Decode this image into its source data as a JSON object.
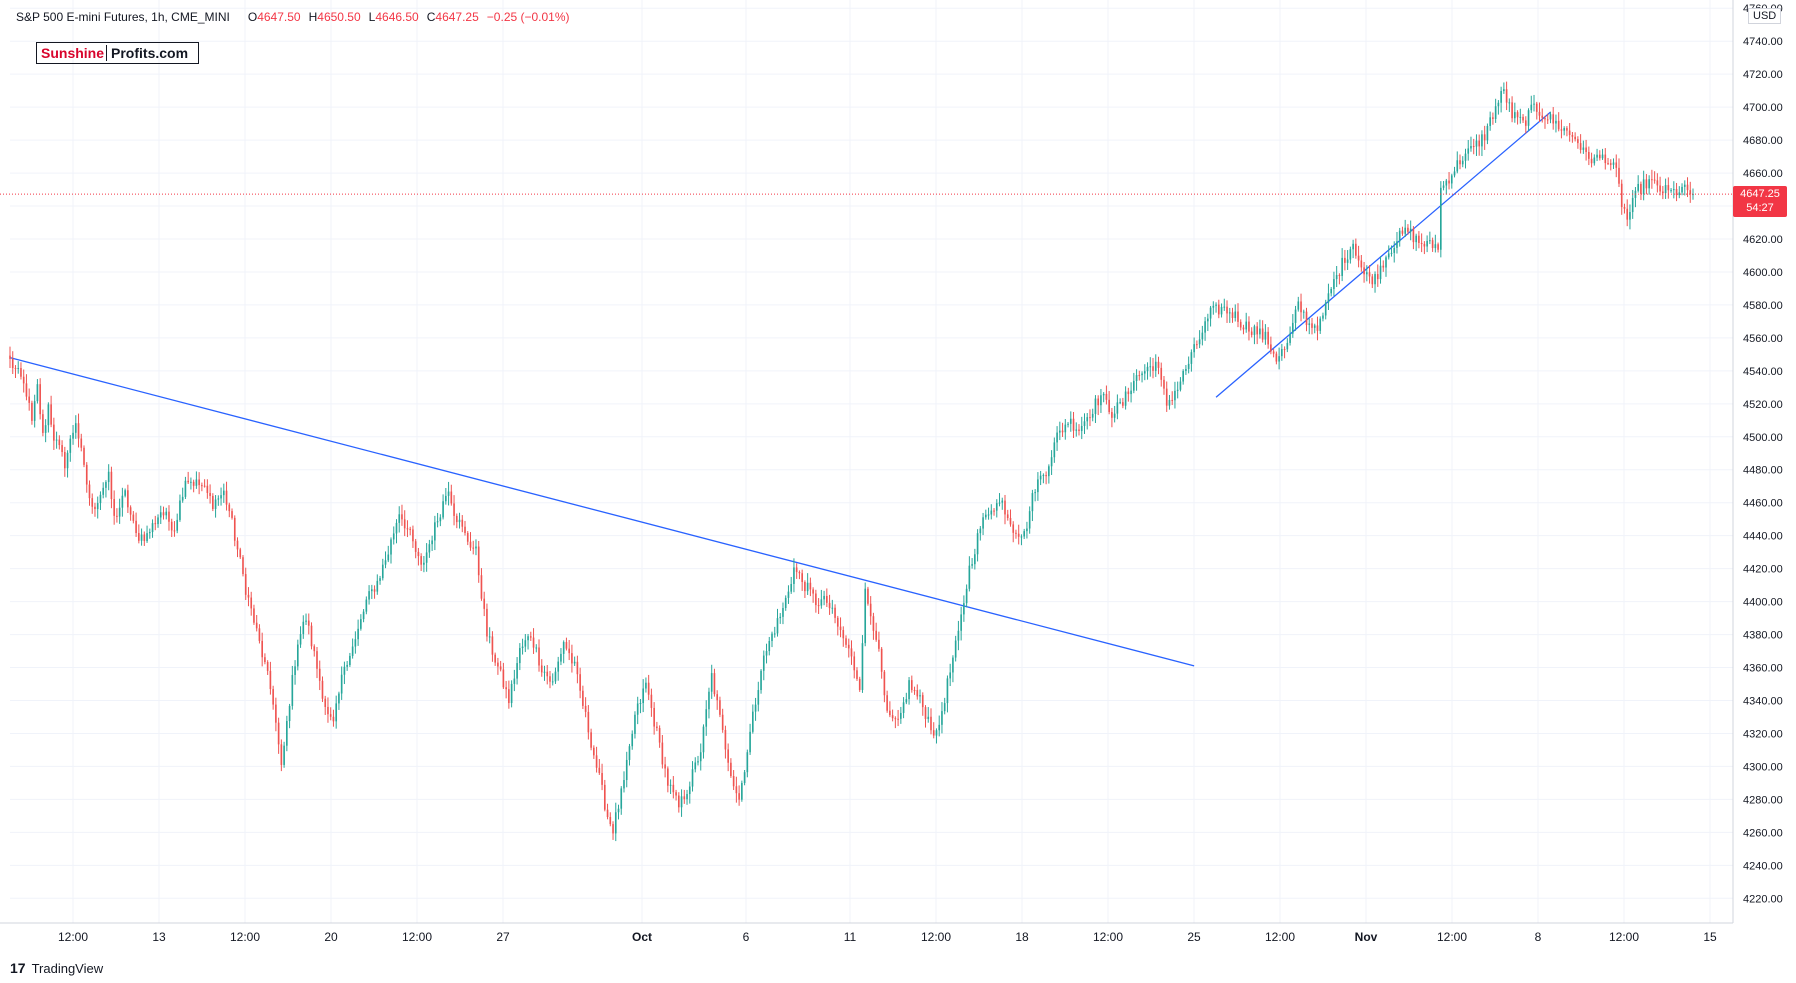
{
  "header": {
    "symbol": "S&P 500 E-mini Futures, 1h, CME_MINI",
    "open_label": "O",
    "open": "4647.50",
    "high_label": "H",
    "high": "4650.50",
    "low_label": "L",
    "low": "4646.50",
    "close_label": "C",
    "close": "4647.25",
    "change": "−0.25 (−0.01%)"
  },
  "watermark": {
    "part1": "Sunshine",
    "part2": "Profits.com"
  },
  "footer": {
    "logo_text": "TradingView"
  },
  "axis": {
    "currency": "USD"
  },
  "last_price": {
    "price": "4647.25",
    "countdown": "54:27"
  },
  "colors": {
    "up": "#26a69a",
    "down": "#ef5350",
    "trendline": "#2962ff",
    "price_line": "#f23645"
  },
  "chart_data": {
    "type": "candlestick",
    "title": "S&P 500 E-mini Futures, 1h, CME_MINI",
    "ylim": [
      4205,
      4765
    ],
    "yticks": [
      4220,
      4240,
      4260,
      4280,
      4300,
      4320,
      4340,
      4360,
      4380,
      4400,
      4420,
      4440,
      4460,
      4480,
      4500,
      4520,
      4540,
      4560,
      4580,
      4600,
      4620,
      4640,
      4660,
      4680,
      4700,
      4720,
      4740,
      4760
    ],
    "x_labels": [
      "12:00",
      "13",
      "12:00",
      "20",
      "12:00",
      "27",
      "Oct",
      "6",
      "11",
      "12:00",
      "18",
      "12:00",
      "25",
      "12:00",
      "Nov",
      "12:00",
      "8",
      "12:00",
      "15"
    ],
    "grid": true,
    "last_price": 4647.25,
    "path_anchors": [
      [
        0,
        4546
      ],
      [
        4,
        4535
      ],
      [
        6,
        4527
      ],
      [
        8,
        4508
      ],
      [
        10,
        4530
      ],
      [
        12,
        4500
      ],
      [
        14,
        4519
      ],
      [
        16,
        4500
      ],
      [
        20,
        4484
      ],
      [
        24,
        4510
      ],
      [
        27,
        4480
      ],
      [
        30,
        4455
      ],
      [
        34,
        4470
      ],
      [
        36,
        4475
      ],
      [
        38,
        4450
      ],
      [
        42,
        4465
      ],
      [
        46,
        4440
      ],
      [
        50,
        4440
      ],
      [
        55,
        4455
      ],
      [
        60,
        4445
      ],
      [
        64,
        4475
      ],
      [
        70,
        4470
      ],
      [
        74,
        4460
      ],
      [
        78,
        4466
      ],
      [
        80,
        4455
      ],
      [
        86,
        4408
      ],
      [
        92,
        4368
      ],
      [
        96,
        4340
      ],
      [
        99,
        4298
      ],
      [
        102,
        4340
      ],
      [
        105,
        4376
      ],
      [
        108,
        4390
      ],
      [
        112,
        4360
      ],
      [
        116,
        4330
      ],
      [
        118,
        4325
      ],
      [
        122,
        4362
      ],
      [
        126,
        4376
      ],
      [
        130,
        4400
      ],
      [
        134,
        4412
      ],
      [
        138,
        4430
      ],
      [
        142,
        4455
      ],
      [
        146,
        4440
      ],
      [
        150,
        4420
      ],
      [
        154,
        4440
      ],
      [
        158,
        4460
      ],
      [
        160,
        4470
      ],
      [
        162,
        4455
      ],
      [
        166,
        4440
      ],
      [
        170,
        4430
      ],
      [
        174,
        4380
      ],
      [
        178,
        4360
      ],
      [
        182,
        4340
      ],
      [
        186,
        4370
      ],
      [
        190,
        4380
      ],
      [
        194,
        4360
      ],
      [
        198,
        4350
      ],
      [
        202,
        4376
      ],
      [
        206,
        4360
      ],
      [
        210,
        4330
      ],
      [
        214,
        4300
      ],
      [
        218,
        4270
      ],
      [
        220,
        4262
      ],
      [
        224,
        4290
      ],
      [
        228,
        4330
      ],
      [
        232,
        4350
      ],
      [
        236,
        4320
      ],
      [
        240,
        4290
      ],
      [
        244,
        4275
      ],
      [
        248,
        4290
      ],
      [
        252,
        4310
      ],
      [
        256,
        4355
      ],
      [
        260,
        4320
      ],
      [
        264,
        4290
      ],
      [
        266,
        4280
      ],
      [
        270,
        4320
      ],
      [
        274,
        4360
      ],
      [
        278,
        4380
      ],
      [
        282,
        4395
      ],
      [
        286,
        4420
      ],
      [
        290,
        4410
      ],
      [
        294,
        4400
      ],
      [
        298,
        4400
      ],
      [
        302,
        4385
      ],
      [
        306,
        4370
      ],
      [
        310,
        4350
      ],
      [
        312,
        4405
      ],
      [
        316,
        4380
      ],
      [
        320,
        4330
      ],
      [
        324,
        4325
      ],
      [
        328,
        4350
      ],
      [
        332,
        4340
      ],
      [
        336,
        4325
      ],
      [
        338,
        4318
      ],
      [
        342,
        4350
      ],
      [
        346,
        4380
      ],
      [
        350,
        4420
      ],
      [
        354,
        4445
      ],
      [
        358,
        4458
      ],
      [
        362,
        4460
      ],
      [
        366,
        4445
      ],
      [
        370,
        4440
      ],
      [
        374,
        4470
      ],
      [
        378,
        4480
      ],
      [
        382,
        4500
      ],
      [
        386,
        4510
      ],
      [
        390,
        4505
      ],
      [
        394,
        4515
      ],
      [
        398,
        4525
      ],
      [
        402,
        4515
      ],
      [
        406,
        4520
      ],
      [
        410,
        4535
      ],
      [
        414,
        4540
      ],
      [
        418,
        4545
      ],
      [
        422,
        4520
      ],
      [
        426,
        4530
      ],
      [
        430,
        4545
      ],
      [
        434,
        4560
      ],
      [
        438,
        4575
      ],
      [
        442,
        4578
      ],
      [
        446,
        4575
      ],
      [
        450,
        4568
      ],
      [
        454,
        4565
      ],
      [
        458,
        4560
      ],
      [
        462,
        4548
      ],
      [
        466,
        4555
      ],
      [
        470,
        4580
      ],
      [
        474,
        4568
      ],
      [
        478,
        4568
      ],
      [
        482,
        4590
      ],
      [
        486,
        4605
      ],
      [
        490,
        4618
      ],
      [
        494,
        4598
      ],
      [
        498,
        4596
      ],
      [
        502,
        4610
      ],
      [
        506,
        4620
      ],
      [
        510,
        4625
      ],
      [
        514,
        4618
      ],
      [
        518,
        4616
      ],
      [
        521,
        4616
      ],
      [
        522,
        4650
      ],
      [
        526,
        4660
      ],
      [
        530,
        4670
      ],
      [
        534,
        4675
      ],
      [
        538,
        4683
      ],
      [
        542,
        4700
      ],
      [
        545,
        4710
      ],
      [
        548,
        4695
      ],
      [
        552,
        4690
      ],
      [
        556,
        4700
      ],
      [
        560,
        4695
      ],
      [
        564,
        4690
      ],
      [
        568,
        4685
      ],
      [
        572,
        4680
      ],
      [
        574,
        4672
      ],
      [
        578,
        4668
      ],
      [
        582,
        4670
      ],
      [
        586,
        4660
      ],
      [
        588,
        4642
      ],
      [
        590,
        4632
      ],
      [
        594,
        4650
      ],
      [
        598,
        4655
      ],
      [
        602,
        4650
      ],
      [
        606,
        4648
      ],
      [
        610,
        4650
      ],
      [
        614,
        4647.25
      ]
    ],
    "trendlines": [
      {
        "from": [
          0,
          4548
        ],
        "to": [
          432,
          4361
        ]
      },
      {
        "from": [
          440,
          4524
        ],
        "to": [
          562,
          4697
        ]
      }
    ]
  }
}
